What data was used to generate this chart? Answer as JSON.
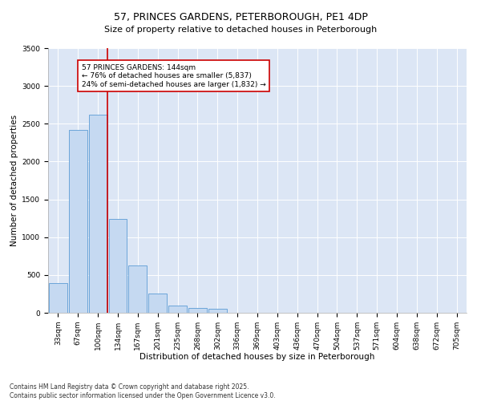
{
  "title": "57, PRINCES GARDENS, PETERBOROUGH, PE1 4DP",
  "subtitle": "Size of property relative to detached houses in Peterborough",
  "xlabel": "Distribution of detached houses by size in Peterborough",
  "ylabel": "Number of detached properties",
  "footnote1": "Contains HM Land Registry data © Crown copyright and database right 2025.",
  "footnote2": "Contains public sector information licensed under the Open Government Licence v3.0.",
  "categories": [
    "33sqm",
    "67sqm",
    "100sqm",
    "134sqm",
    "167sqm",
    "201sqm",
    "235sqm",
    "268sqm",
    "302sqm",
    "336sqm",
    "369sqm",
    "403sqm",
    "436sqm",
    "470sqm",
    "504sqm",
    "537sqm",
    "571sqm",
    "604sqm",
    "638sqm",
    "672sqm",
    "705sqm"
  ],
  "values": [
    390,
    2420,
    2620,
    1240,
    630,
    255,
    100,
    60,
    50,
    0,
    0,
    0,
    0,
    0,
    0,
    0,
    0,
    0,
    0,
    0,
    0
  ],
  "bar_color": "#c5d9f1",
  "bar_edge_color": "#5b9bd5",
  "vline_color": "#cc0000",
  "annotation_line1": "57 PRINCES GARDENS: 144sqm",
  "annotation_line2": "← 76% of detached houses are smaller (5,837)",
  "annotation_line3": "24% of semi-detached houses are larger (1,832) →",
  "annotation_box_color": "#ffffff",
  "annotation_box_edgecolor": "#cc0000",
  "ylim": [
    0,
    3500
  ],
  "yticks": [
    0,
    500,
    1000,
    1500,
    2000,
    2500,
    3000,
    3500
  ],
  "plot_background": "#dce6f5",
  "title_fontsize": 9,
  "axis_label_fontsize": 7.5,
  "tick_fontsize": 6.5,
  "footnote_fontsize": 5.5
}
